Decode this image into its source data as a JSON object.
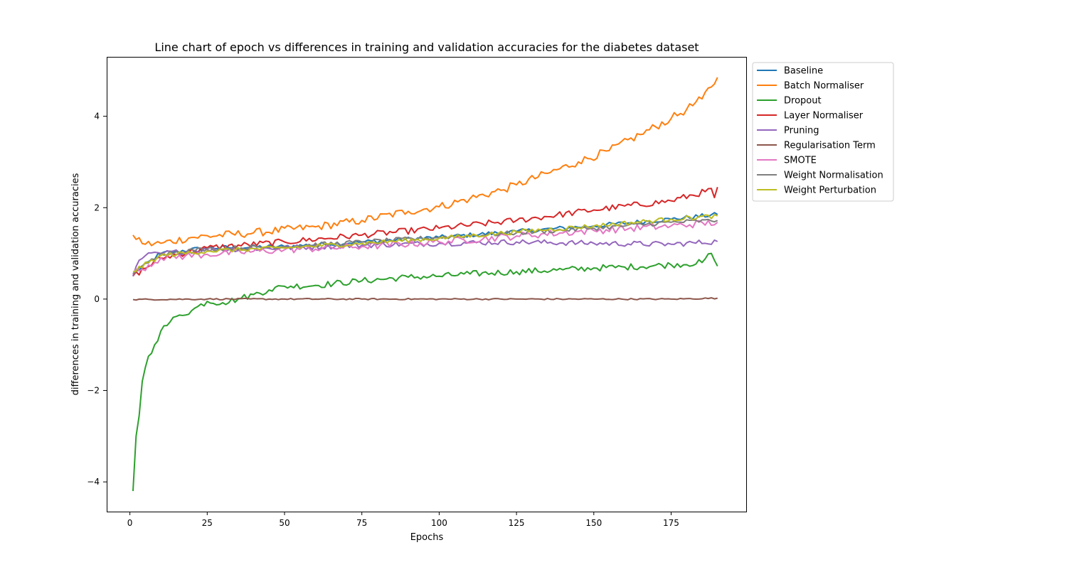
{
  "chart_data": {
    "type": "line",
    "title": "Line chart of epoch vs differences in training and validation accuracies for the diabetes dataset",
    "xlabel": "Epochs",
    "ylabel": "differences in training and validation accuracies",
    "xlim": [
      -7.5,
      199.5
    ],
    "ylim": [
      -4.65,
      5.3
    ],
    "xticks": [
      0,
      25,
      50,
      75,
      100,
      125,
      150,
      175
    ],
    "yticks": [
      -4,
      -2,
      0,
      2,
      4
    ],
    "xtick_labels": [
      "0",
      "25",
      "50",
      "75",
      "100",
      "125",
      "150",
      "175"
    ],
    "ytick_labels": [
      "−4",
      "−2",
      "0",
      "2",
      "4"
    ],
    "grid": false,
    "legend_position": "outside-upper-right",
    "epochs": [
      1,
      190
    ],
    "series": [
      {
        "name": "Baseline",
        "color": "#1f77b4",
        "points": [
          [
            1,
            0.55
          ],
          [
            10,
            1.0
          ],
          [
            25,
            1.12
          ],
          [
            50,
            1.15
          ],
          [
            75,
            1.25
          ],
          [
            100,
            1.35
          ],
          [
            125,
            1.48
          ],
          [
            150,
            1.6
          ],
          [
            175,
            1.75
          ],
          [
            190,
            1.85
          ]
        ]
      },
      {
        "name": "Batch Normaliser",
        "color": "#ff7f0e",
        "points": [
          [
            1,
            1.4
          ],
          [
            5,
            1.2
          ],
          [
            10,
            1.22
          ],
          [
            20,
            1.35
          ],
          [
            40,
            1.45
          ],
          [
            60,
            1.58
          ],
          [
            75,
            1.72
          ],
          [
            90,
            1.92
          ],
          [
            100,
            2.02
          ],
          [
            110,
            2.2
          ],
          [
            120,
            2.38
          ],
          [
            125,
            2.5
          ],
          [
            135,
            2.75
          ],
          [
            145,
            3.0
          ],
          [
            155,
            3.25
          ],
          [
            165,
            3.6
          ],
          [
            175,
            3.95
          ],
          [
            180,
            4.15
          ],
          [
            185,
            4.38
          ],
          [
            190,
            4.85
          ]
        ]
      },
      {
        "name": "Dropout",
        "color": "#2ca02c",
        "points": [
          [
            1,
            -4.2
          ],
          [
            2,
            -3.0
          ],
          [
            3,
            -2.55
          ],
          [
            4,
            -1.8
          ],
          [
            6,
            -1.25
          ],
          [
            8,
            -1.0
          ],
          [
            10,
            -0.7
          ],
          [
            13,
            -0.5
          ],
          [
            16,
            -0.35
          ],
          [
            20,
            -0.25
          ],
          [
            25,
            -0.05
          ],
          [
            30,
            -0.08
          ],
          [
            35,
            0.0
          ],
          [
            40,
            0.1
          ],
          [
            45,
            0.2
          ],
          [
            50,
            0.28
          ],
          [
            60,
            0.3
          ],
          [
            75,
            0.4
          ],
          [
            90,
            0.48
          ],
          [
            100,
            0.5
          ],
          [
            110,
            0.55
          ],
          [
            125,
            0.6
          ],
          [
            140,
            0.64
          ],
          [
            150,
            0.68
          ],
          [
            160,
            0.7
          ],
          [
            175,
            0.75
          ],
          [
            185,
            0.8
          ],
          [
            188,
            1.0
          ],
          [
            190,
            0.72
          ]
        ]
      },
      {
        "name": "Layer Normaliser",
        "color": "#d62728",
        "points": [
          [
            1,
            0.5
          ],
          [
            10,
            0.9
          ],
          [
            25,
            1.12
          ],
          [
            50,
            1.25
          ],
          [
            75,
            1.4
          ],
          [
            100,
            1.55
          ],
          [
            125,
            1.72
          ],
          [
            150,
            1.95
          ],
          [
            175,
            2.15
          ],
          [
            186,
            2.35
          ],
          [
            188,
            2.42
          ],
          [
            189,
            2.22
          ],
          [
            190,
            2.45
          ]
        ]
      },
      {
        "name": "Pruning",
        "color": "#9467bd",
        "points": [
          [
            1,
            0.5
          ],
          [
            3,
            0.85
          ],
          [
            5,
            0.95
          ],
          [
            10,
            1.0
          ],
          [
            25,
            1.08
          ],
          [
            50,
            1.12
          ],
          [
            75,
            1.18
          ],
          [
            100,
            1.22
          ],
          [
            125,
            1.25
          ],
          [
            150,
            1.22
          ],
          [
            175,
            1.2
          ],
          [
            190,
            1.26
          ]
        ]
      },
      {
        "name": "Regularisation Term",
        "color": "#8c564b",
        "points": [
          [
            1,
            -0.01
          ],
          [
            25,
            0.0
          ],
          [
            50,
            0.0
          ],
          [
            75,
            0.0
          ],
          [
            100,
            0.0
          ],
          [
            125,
            0.0
          ],
          [
            150,
            0.0
          ],
          [
            175,
            0.0
          ],
          [
            190,
            0.02
          ]
        ]
      },
      {
        "name": "SMOTE",
        "color": "#e377c2",
        "points": [
          [
            1,
            0.55
          ],
          [
            10,
            0.9
          ],
          [
            25,
            0.98
          ],
          [
            50,
            1.08
          ],
          [
            75,
            1.15
          ],
          [
            100,
            1.25
          ],
          [
            125,
            1.38
          ],
          [
            150,
            1.5
          ],
          [
            175,
            1.6
          ],
          [
            190,
            1.68
          ]
        ]
      },
      {
        "name": "Weight Normalisation",
        "color": "#7f7f7f",
        "points": [
          [
            1,
            0.55
          ],
          [
            10,
            1.0
          ],
          [
            25,
            1.1
          ],
          [
            50,
            1.15
          ],
          [
            75,
            1.25
          ],
          [
            100,
            1.35
          ],
          [
            125,
            1.45
          ],
          [
            150,
            1.55
          ],
          [
            175,
            1.68
          ],
          [
            190,
            1.72
          ]
        ]
      },
      {
        "name": "Weight Perturbation",
        "color": "#bcbd22",
        "points": [
          [
            1,
            0.6
          ],
          [
            10,
            0.95
          ],
          [
            25,
            1.05
          ],
          [
            50,
            1.12
          ],
          [
            75,
            1.22
          ],
          [
            100,
            1.33
          ],
          [
            125,
            1.47
          ],
          [
            150,
            1.6
          ],
          [
            175,
            1.75
          ],
          [
            190,
            1.82
          ]
        ]
      }
    ]
  }
}
